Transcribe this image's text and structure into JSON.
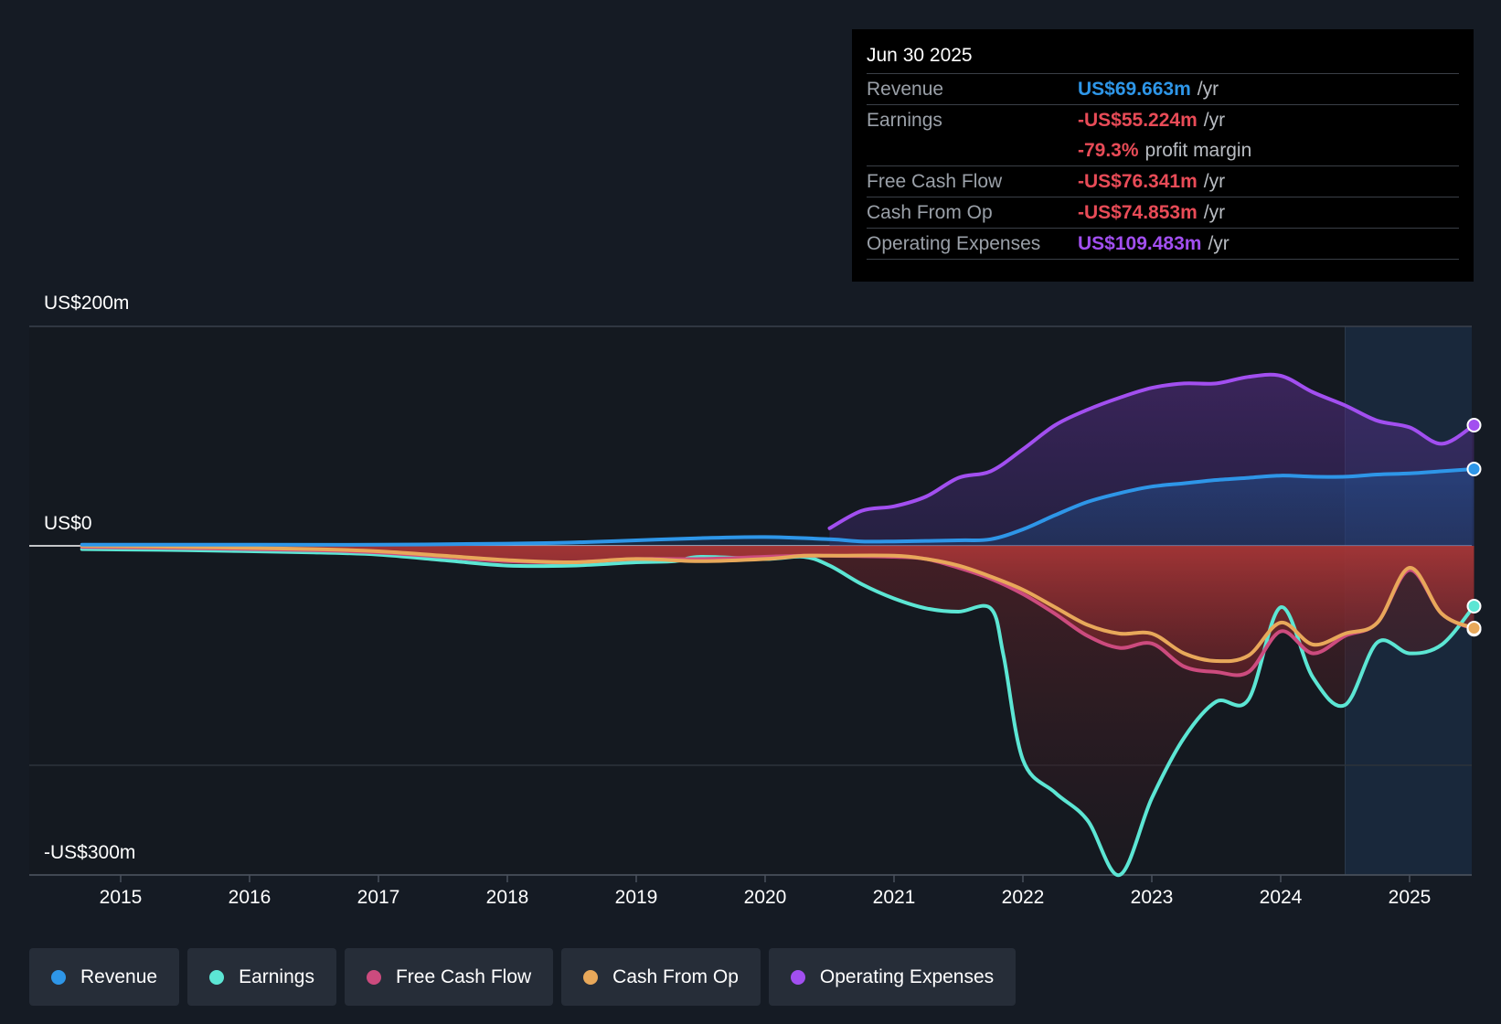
{
  "tooltip": {
    "date": "Jun 30 2025",
    "rows": [
      {
        "label": "Revenue",
        "value": "US$69.663m",
        "unit": "/yr",
        "color": "#2e96e8"
      },
      {
        "label": "Earnings",
        "value": "-US$55.224m",
        "unit": "/yr",
        "color": "#e84b57"
      },
      {
        "label": "",
        "value": "-79.3%",
        "unit": "profit margin",
        "color": "#e84b57"
      },
      {
        "label": "Free Cash Flow",
        "value": "-US$76.341m",
        "unit": "/yr",
        "color": "#e84b57"
      },
      {
        "label": "Cash From Op",
        "value": "-US$74.853m",
        "unit": "/yr",
        "color": "#e84b57"
      },
      {
        "label": "Operating Expenses",
        "value": "US$109.483m",
        "unit": "/yr",
        "color": "#a24ff0"
      }
    ]
  },
  "legend": [
    {
      "label": "Revenue",
      "color": "#2e96e8"
    },
    {
      "label": "Earnings",
      "color": "#5ce6d4"
    },
    {
      "label": "Free Cash Flow",
      "color": "#cc4b7e"
    },
    {
      "label": "Cash From Op",
      "color": "#e8a85a"
    },
    {
      "label": "Operating Expenses",
      "color": "#a24ff0"
    }
  ],
  "chart_data": {
    "type": "line",
    "title": "",
    "xlabel": "",
    "ylabel": "",
    "x_ticks": [
      "2015",
      "2016",
      "2017",
      "2018",
      "2019",
      "2020",
      "2021",
      "2022",
      "2023",
      "2024",
      "2025"
    ],
    "y_labels": [
      "US$200m",
      "US$0",
      "-US$300m"
    ],
    "ylim": [
      -300,
      200
    ],
    "xlim": [
      2014.3,
      2025.5
    ],
    "forecast_shade_start": 2024.5,
    "series": [
      {
        "name": "Revenue",
        "color": "#2e96e8",
        "x": [
          2014.7,
          2016,
          2017,
          2018,
          2018.5,
          2019,
          2019.5,
          2020,
          2020.5,
          2020.75,
          2021,
          2021.5,
          2021.75,
          2022,
          2022.25,
          2022.5,
          2022.75,
          2023,
          2023.25,
          2023.5,
          2023.75,
          2024,
          2024.25,
          2024.5,
          2024.75,
          2025,
          2025.25,
          2025.5
        ],
        "values": [
          1,
          1,
          1,
          2,
          3,
          5,
          7,
          8,
          6,
          4,
          4,
          5,
          6,
          15,
          28,
          40,
          48,
          54,
          57,
          60,
          62,
          64,
          63,
          63,
          65,
          66,
          68,
          70
        ]
      },
      {
        "name": "Earnings",
        "color": "#5ce6d4",
        "x": [
          2014.7,
          2015.5,
          2016.5,
          2017,
          2017.5,
          2018,
          2018.5,
          2019,
          2019.3,
          2019.5,
          2020,
          2020.3,
          2020.5,
          2020.75,
          2021,
          2021.25,
          2021.5,
          2021.75,
          2021.85,
          2022,
          2022.25,
          2022.5,
          2022.75,
          2023,
          2023.25,
          2023.5,
          2023.75,
          2024,
          2024.25,
          2024.5,
          2024.75,
          2025,
          2025.25,
          2025.5
        ],
        "values": [
          -3,
          -4,
          -6,
          -8,
          -13,
          -18,
          -18,
          -15,
          -14,
          -10,
          -12,
          -10,
          -18,
          -35,
          -48,
          -57,
          -60,
          -57,
          -100,
          -195,
          -225,
          -250,
          -300,
          -230,
          -175,
          -142,
          -140,
          -56,
          -120,
          -145,
          -88,
          -98,
          -90,
          -55
        ]
      },
      {
        "name": "Free Cash Flow",
        "color": "#cc4b7e",
        "x": [
          2014.7,
          2015.5,
          2016.5,
          2017,
          2017.5,
          2018,
          2018.5,
          2019,
          2019.5,
          2020,
          2020.3,
          2020.5,
          2021,
          2021.25,
          2021.5,
          2021.75,
          2022,
          2022.25,
          2022.5,
          2022.75,
          2023,
          2023.25,
          2023.5,
          2023.75,
          2024,
          2024.25,
          2024.5,
          2024.75,
          2025,
          2025.25,
          2025.5
        ],
        "values": [
          -1,
          -2,
          -4,
          -6,
          -10,
          -14,
          -15,
          -12,
          -12,
          -10,
          -9,
          -9,
          -10,
          -12,
          -20,
          -30,
          -44,
          -62,
          -82,
          -93,
          -89,
          -110,
          -115,
          -115,
          -78,
          -98,
          -82,
          -70,
          -22,
          -62,
          -76
        ]
      },
      {
        "name": "Cash From Op",
        "color": "#e8a85a",
        "x": [
          2014.7,
          2015.5,
          2016.5,
          2017,
          2017.5,
          2018,
          2018.5,
          2019,
          2019.5,
          2020,
          2020.3,
          2020.5,
          2021,
          2021.25,
          2021.5,
          2021.75,
          2022,
          2022.25,
          2022.5,
          2022.75,
          2023,
          2023.25,
          2023.5,
          2023.75,
          2024,
          2024.25,
          2024.5,
          2024.75,
          2025,
          2025.25,
          2025.5
        ],
        "values": [
          0,
          -1,
          -3,
          -5,
          -9,
          -13,
          -15,
          -12,
          -14,
          -12,
          -9,
          -9,
          -9,
          -12,
          -18,
          -28,
          -40,
          -56,
          -72,
          -80,
          -80,
          -98,
          -105,
          -100,
          -70,
          -90,
          -80,
          -70,
          -20,
          -62,
          -75
        ]
      },
      {
        "name": "Operating Expenses",
        "color": "#a24ff0",
        "x": [
          2020.5,
          2020.75,
          2021,
          2021.25,
          2021.5,
          2021.75,
          2022,
          2022.25,
          2022.5,
          2022.75,
          2023,
          2023.25,
          2023.5,
          2023.75,
          2024,
          2024.25,
          2024.5,
          2024.75,
          2025,
          2025.25,
          2025.5
        ],
        "values": [
          16,
          32,
          36,
          45,
          62,
          68,
          88,
          110,
          124,
          135,
          144,
          148,
          148,
          154,
          155,
          140,
          128,
          114,
          108,
          93,
          110
        ]
      }
    ]
  }
}
